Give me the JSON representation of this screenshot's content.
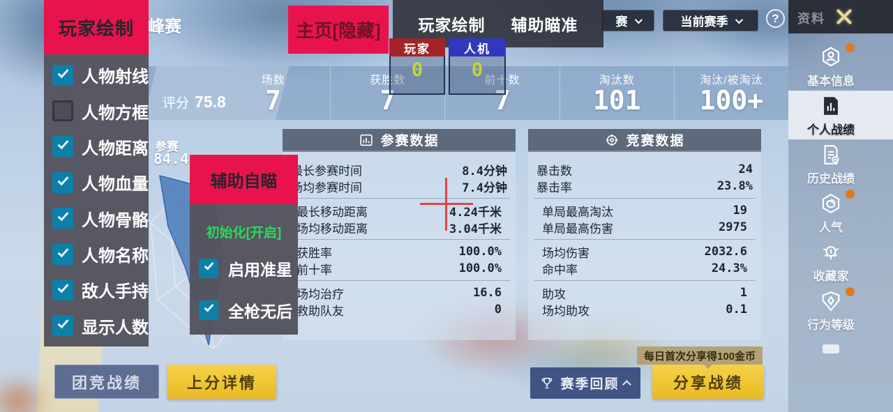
{
  "game": {
    "season_title": "峰赛",
    "dropdowns": [
      {
        "label": "赛"
      },
      {
        "label": "当前赛季"
      }
    ],
    "help_label": "?",
    "rating_label": "评分",
    "rating_value": "75.8",
    "stats": [
      {
        "label": "场数",
        "value": "7"
      },
      {
        "label": "获胜数",
        "value": "7"
      },
      {
        "label": "前十数",
        "value": "7"
      },
      {
        "label": "淘汰数",
        "value": "101"
      },
      {
        "label": "淘汰/被淘汰",
        "value": "100+"
      }
    ],
    "radar": {
      "label": "参赛",
      "value": "84.4"
    },
    "panels": [
      {
        "title": "参赛数据",
        "icon": "bar-chart",
        "groups": [
          [
            {
              "label": "最长参赛时间",
              "value": "8.4分钟"
            },
            {
              "label": "场均参赛时间",
              "value": "7.4分钟"
            }
          ],
          [
            {
              "label": "最长移动距离",
              "value": "4.24千米"
            },
            {
              "label": "场均移动距离",
              "value": "3.04千米"
            }
          ],
          [
            {
              "label": "获胜率",
              "value": "100.0%"
            },
            {
              "label": "前十率",
              "value": "100.0%"
            }
          ],
          [
            {
              "label": "场均治疗",
              "value": "16.6"
            },
            {
              "label": "救助队友",
              "value": "0"
            }
          ]
        ]
      },
      {
        "title": "竞赛数据",
        "icon": "target",
        "groups": [
          [
            {
              "label": "暴击数",
              "value": "24"
            },
            {
              "label": "暴击率",
              "value": "23.8%"
            }
          ],
          [
            {
              "label": "单局最高淘汰",
              "value": "19"
            },
            {
              "label": "单局最高伤害",
              "value": "2975"
            }
          ],
          [
            {
              "label": "场均伤害",
              "value": "2032.6"
            },
            {
              "label": "命中率",
              "value": "24.3%"
            }
          ],
          [
            {
              "label": "助攻",
              "value": "1"
            },
            {
              "label": "场均助攻",
              "value": "0.1"
            }
          ]
        ]
      }
    ],
    "sidebar": {
      "title": "资料",
      "items": [
        {
          "label": "基本信息",
          "icon": "profile-hex",
          "badge": true,
          "selected": false
        },
        {
          "label": "个人战绩",
          "icon": "stats-doc",
          "badge": false,
          "selected": true
        },
        {
          "label": "历史战绩",
          "icon": "history-doc",
          "badge": false,
          "selected": false
        },
        {
          "label": "人气",
          "icon": "popularity",
          "badge": true,
          "selected": false
        },
        {
          "label": "收藏家",
          "icon": "collector",
          "badge": false,
          "selected": false
        },
        {
          "label": "行为等级",
          "icon": "conduct",
          "badge": true,
          "selected": false
        }
      ]
    },
    "buttons": {
      "team_stats": "团竞战绩",
      "rank_details": "上分详情",
      "season_review": "赛季回顾",
      "share_stats": "分享战绩",
      "share_tooltip": "每日首次分享得100金币"
    }
  },
  "overlay": {
    "draw_menu": {
      "title": "玩家绘制",
      "items": [
        {
          "label": "人物射线",
          "checked": true
        },
        {
          "label": "人物方框",
          "checked": false
        },
        {
          "label": "人物距离",
          "checked": true
        },
        {
          "label": "人物血量",
          "checked": true
        },
        {
          "label": "人物骨骼",
          "checked": true
        },
        {
          "label": "人物名称",
          "checked": true
        },
        {
          "label": "敌人手持",
          "checked": true
        },
        {
          "label": "显示人数",
          "checked": true
        }
      ]
    },
    "home_button": "主页[隐藏]",
    "tabs": [
      {
        "label": "玩家绘制"
      },
      {
        "label": "辅助瞄准"
      }
    ],
    "counters": [
      {
        "label": "玩家",
        "value": "0",
        "color": "#a32428"
      },
      {
        "label": "人机",
        "value": "0",
        "color": "#3038be"
      }
    ],
    "aim_menu": {
      "title": "辅助自瞄",
      "status": "初始化[开启]",
      "items": [
        {
          "label": "启用准星",
          "checked": true
        },
        {
          "label": "全枪无后",
          "checked": true
        }
      ]
    }
  }
}
